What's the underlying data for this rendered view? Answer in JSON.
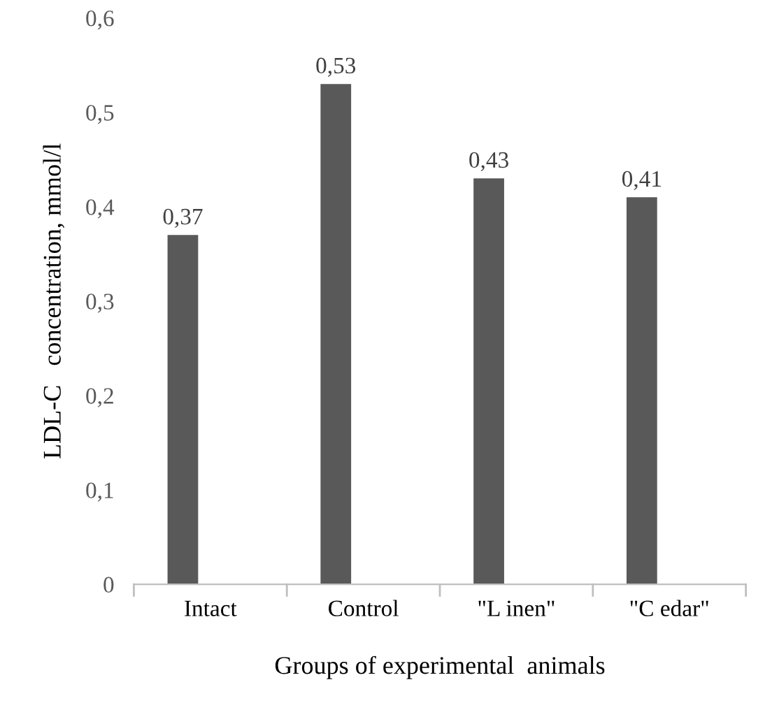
{
  "chart_data": {
    "type": "bar",
    "xlabel": "Groups of experimental  animals",
    "ylabel": "LDL-C   concentration, mmol/l",
    "categories": [
      "Intact",
      "Control",
      "\"L inen\"",
      "\"C edar\""
    ],
    "values": [
      0.37,
      0.53,
      0.43,
      0.41
    ],
    "color": "#595959",
    "value_labels": [
      "0,37",
      "0,53",
      "0,43",
      "0,41"
    ],
    "ylim": [
      0,
      0.6
    ],
    "yticks": [
      0,
      {
        "value": 0.1,
        "label": "0,1"
      },
      {
        "value": 0.2,
        "label": "0,2"
      },
      {
        "value": 0.3,
        "label": "0,3"
      },
      {
        "value": 0.4,
        "label": "0,4"
      },
      {
        "value": 0.5,
        "label": "0,5"
      },
      {
        "value": 0.6,
        "label": "0,6"
      }
    ],
    "grid": false,
    "legend": false
  }
}
